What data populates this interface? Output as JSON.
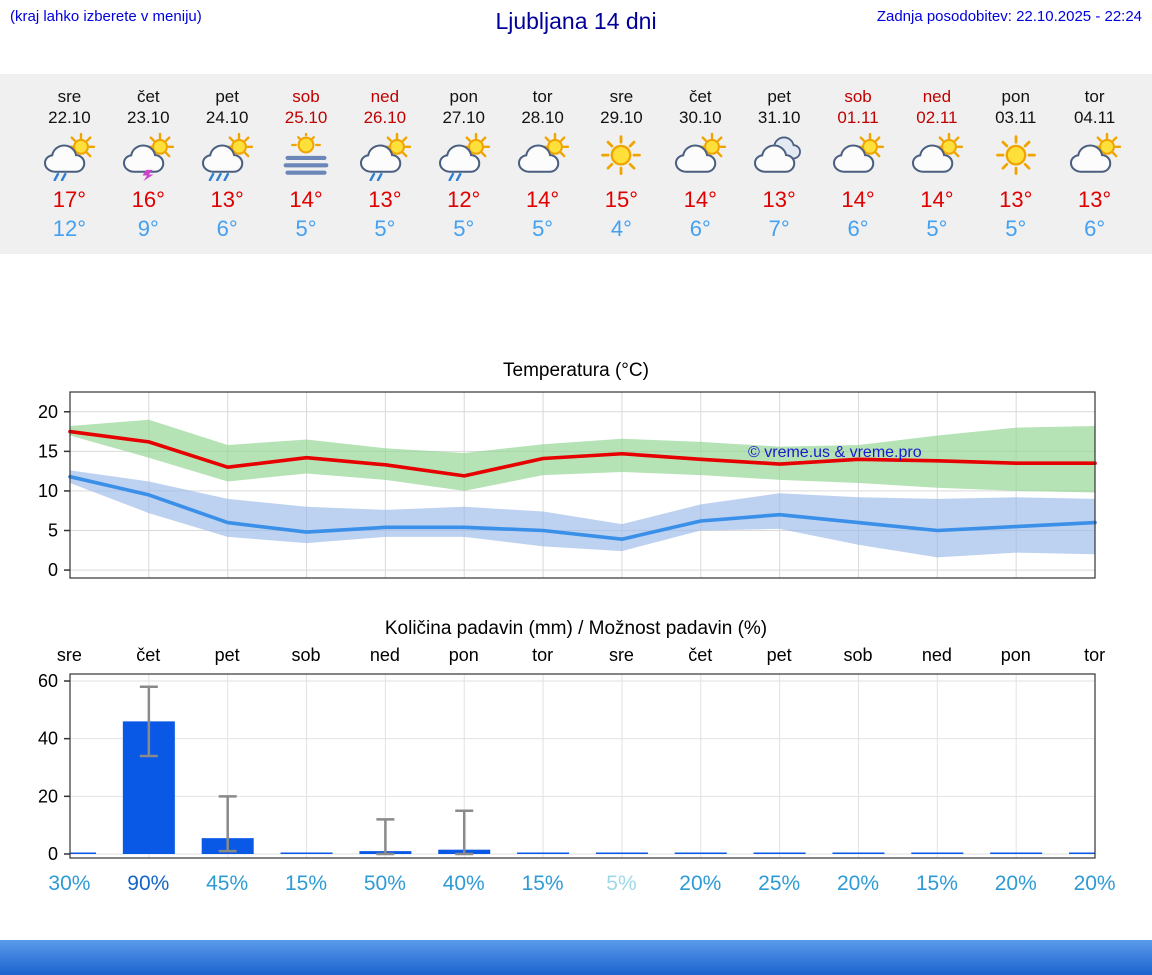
{
  "header": {
    "hint": "(kraj lahko izberete v meniju)",
    "title": "Ljubljana 14 dni",
    "updated": "Zadnja posodobitev: 22.10.2025 - 22:24"
  },
  "watermark": "© vreme.us & vreme.pro",
  "forecast": {
    "days": [
      {
        "name": "sre",
        "date": "22.10",
        "red": false,
        "icon": "sun-shower",
        "hi": "17°",
        "lo": "12°"
      },
      {
        "name": "čet",
        "date": "23.10",
        "red": false,
        "icon": "thunder",
        "hi": "16°",
        "lo": "9°"
      },
      {
        "name": "pet",
        "date": "24.10",
        "red": false,
        "icon": "heavy-rain",
        "hi": "13°",
        "lo": "6°"
      },
      {
        "name": "sob",
        "date": "25.10",
        "red": true,
        "icon": "fog",
        "hi": "14°",
        "lo": "5°"
      },
      {
        "name": "ned",
        "date": "26.10",
        "red": true,
        "icon": "sun-shower",
        "hi": "13°",
        "lo": "5°"
      },
      {
        "name": "pon",
        "date": "27.10",
        "red": false,
        "icon": "sun-shower",
        "hi": "12°",
        "lo": "5°"
      },
      {
        "name": "tor",
        "date": "28.10",
        "red": false,
        "icon": "partly",
        "hi": "14°",
        "lo": "5°"
      },
      {
        "name": "sre",
        "date": "29.10",
        "red": false,
        "icon": "sunny",
        "hi": "15°",
        "lo": "4°"
      },
      {
        "name": "čet",
        "date": "30.10",
        "red": false,
        "icon": "partly",
        "hi": "14°",
        "lo": "6°"
      },
      {
        "name": "pet",
        "date": "31.10",
        "red": false,
        "icon": "cloudy",
        "hi": "13°",
        "lo": "7°"
      },
      {
        "name": "sob",
        "date": "01.11",
        "red": true,
        "icon": "partly",
        "hi": "14°",
        "lo": "6°"
      },
      {
        "name": "ned",
        "date": "02.11",
        "red": true,
        "icon": "partly",
        "hi": "14°",
        "lo": "5°"
      },
      {
        "name": "pon",
        "date": "03.11",
        "red": false,
        "icon": "sunny",
        "hi": "13°",
        "lo": "5°"
      },
      {
        "name": "tor",
        "date": "04.11",
        "red": false,
        "icon": "partly",
        "hi": "13°",
        "lo": "6°"
      }
    ]
  },
  "chart_data": [
    {
      "type": "line",
      "title": "Temperatura (°C)",
      "categories": [
        "sre",
        "čet",
        "pet",
        "sob",
        "ned",
        "pon",
        "tor",
        "sre",
        "čet",
        "pet",
        "sob",
        "ned",
        "pon",
        "tor"
      ],
      "ylim": [
        -1,
        22.5
      ],
      "yticks": [
        0,
        5,
        10,
        15,
        20
      ],
      "grid": true,
      "series": [
        {
          "name": "max temperature",
          "color": "#e60000",
          "values": [
            17.5,
            16.2,
            13.0,
            14.2,
            13.3,
            11.9,
            14.1,
            14.7,
            14.0,
            13.4,
            14.0,
            13.8,
            13.5,
            13.5
          ],
          "band_upper": [
            18.2,
            19.0,
            15.8,
            16.5,
            15.4,
            14.8,
            15.9,
            16.6,
            16.2,
            15.6,
            15.8,
            17.0,
            18.0,
            18.2
          ],
          "band_lower": [
            17.0,
            14.2,
            11.2,
            12.2,
            11.4,
            10.0,
            12.0,
            12.4,
            12.0,
            11.4,
            11.0,
            10.4,
            10.0,
            9.8
          ],
          "band_color": "#8fd48f"
        },
        {
          "name": "min temperature",
          "color": "#3a8fe8",
          "values": [
            11.8,
            9.5,
            6.0,
            4.8,
            5.4,
            5.4,
            5.0,
            3.9,
            6.2,
            7.0,
            6.0,
            5.0,
            5.5,
            6.0
          ],
          "band_upper": [
            12.6,
            11.2,
            9.0,
            8.0,
            7.6,
            8.0,
            7.4,
            5.8,
            8.3,
            9.7,
            9.2,
            9.0,
            9.2,
            9.0
          ],
          "band_lower": [
            11.0,
            7.2,
            4.2,
            3.4,
            4.2,
            4.2,
            3.0,
            2.4,
            5.0,
            5.2,
            3.2,
            1.6,
            2.2,
            2.0
          ],
          "band_color": "#9ab8e8"
        }
      ]
    },
    {
      "type": "bar",
      "title": "Količina padavin (mm) / Možnost padavin (%)",
      "categories": [
        "sre",
        "čet",
        "pet",
        "sob",
        "ned",
        "pon",
        "tor",
        "sre",
        "čet",
        "pet",
        "sob",
        "ned",
        "pon",
        "tor"
      ],
      "ylim": [
        0,
        60
      ],
      "yticks": [
        0,
        20,
        40,
        60
      ],
      "bar_color": "#0a58e6",
      "values": [
        0.4,
        46,
        5.5,
        0.3,
        1.0,
        1.5,
        0.3,
        0.3,
        0.3,
        0.3,
        0.3,
        0.3,
        0.3,
        0.3
      ],
      "whiskers": [
        null,
        [
          34,
          58
        ],
        [
          1,
          20
        ],
        null,
        [
          0,
          12
        ],
        [
          0,
          15
        ],
        null,
        null,
        null,
        null,
        null,
        null,
        null,
        null
      ],
      "percent_labels": [
        {
          "text": "30%",
          "color": "#2e9bd6"
        },
        {
          "text": "90%",
          "color": "#1565c8"
        },
        {
          "text": "45%",
          "color": "#2e9bd6"
        },
        {
          "text": "15%",
          "color": "#2e9bd6"
        },
        {
          "text": "50%",
          "color": "#2e9bd6"
        },
        {
          "text": "40%",
          "color": "#2e9bd6"
        },
        {
          "text": "15%",
          "color": "#2e9bd6"
        },
        {
          "text": "5%",
          "color": "#9fd8e8"
        },
        {
          "text": "20%",
          "color": "#2e9bd6"
        },
        {
          "text": "25%",
          "color": "#2e9bd6"
        },
        {
          "text": "20%",
          "color": "#2e9bd6"
        },
        {
          "text": "15%",
          "color": "#2e9bd6"
        },
        {
          "text": "20%",
          "color": "#2e9bd6"
        },
        {
          "text": "20%",
          "color": "#2e9bd6"
        }
      ]
    }
  ],
  "colors": {
    "header_blue": "#0000dd",
    "title_blue": "#000099",
    "date_red": "#c00000",
    "high_red": "#e00000",
    "low_blue": "#44a0f0",
    "strip_bg": "#f0f0f0",
    "watermark_blue": "#1a1acc",
    "footer_top": "#5b9bea",
    "footer_bottom": "#1c63cf"
  }
}
